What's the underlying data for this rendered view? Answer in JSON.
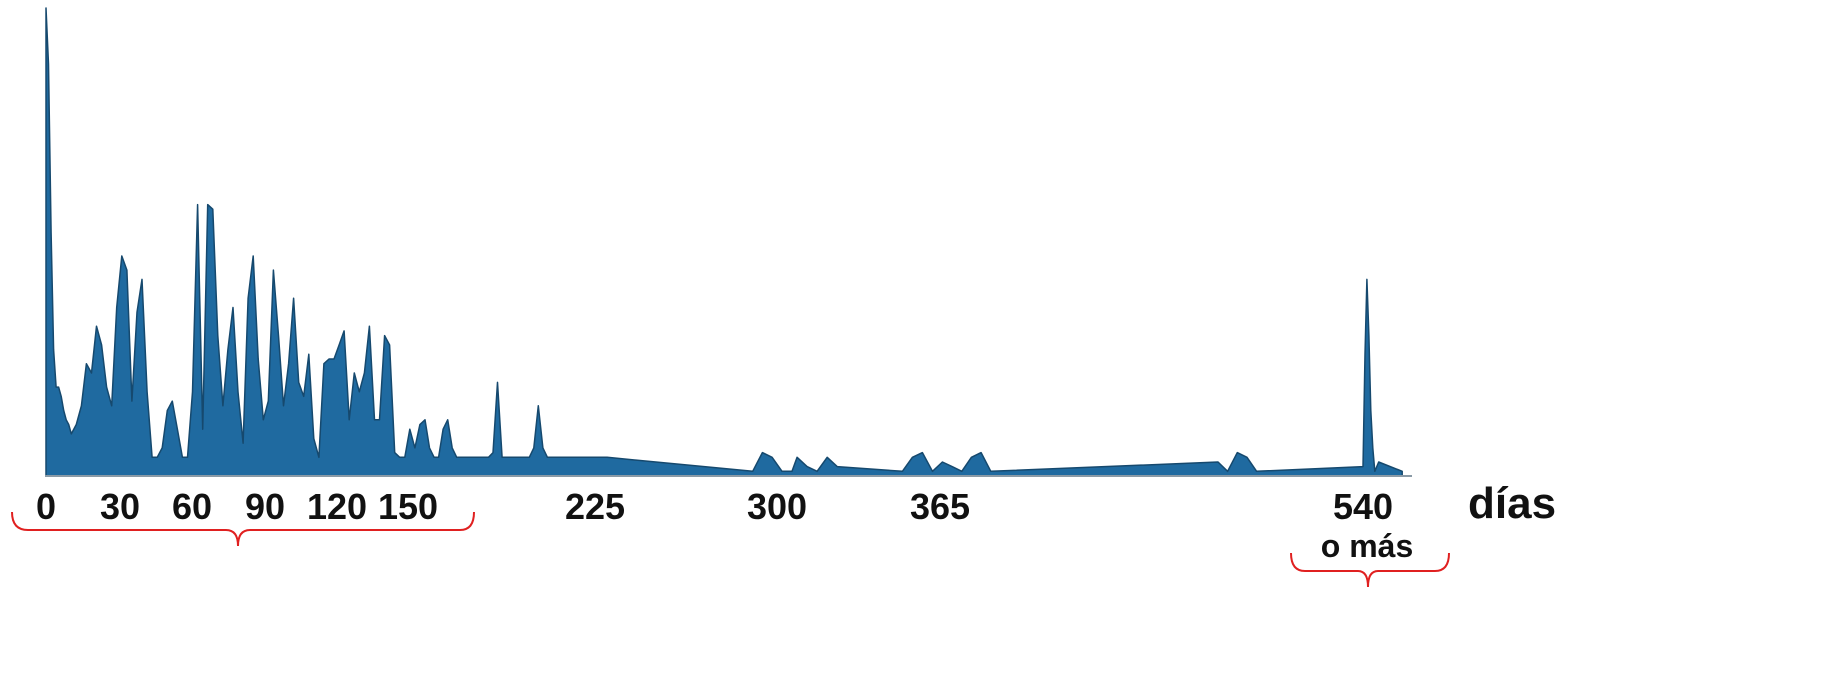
{
  "chart_data": {
    "type": "area",
    "title": "",
    "xlabel": "días",
    "ylabel": "",
    "xlim": [
      0,
      590
    ],
    "ylim": [
      0,
      100
    ],
    "grid": false,
    "x_ticks": [
      "0",
      "30",
      "60",
      "90",
      "120",
      "150",
      "225",
      "300",
      "365",
      "540"
    ],
    "x_tick_note": "o más",
    "colors": {
      "fill": "#1f6aa0",
      "stroke": "#16496e",
      "axis": "#8a9aa6",
      "bracket": "#e02020"
    },
    "series": [
      {
        "x": [
          0,
          1,
          2,
          3,
          4,
          5,
          6,
          7,
          8,
          9,
          10,
          12,
          14,
          16,
          18,
          20,
          22,
          24,
          26,
          28,
          30,
          32,
          34,
          36,
          38,
          40,
          42,
          44,
          46,
          48,
          50,
          52,
          54,
          56,
          58,
          60,
          62,
          64,
          66,
          68,
          70,
          72,
          74,
          76,
          78,
          80,
          82,
          84,
          86,
          88,
          90,
          92,
          94,
          96,
          98,
          100,
          102,
          104,
          106,
          108,
          110,
          112,
          114,
          116,
          118,
          120,
          122,
          124,
          126,
          128,
          130,
          132,
          134,
          136,
          138,
          140,
          142,
          144,
          146,
          148,
          150,
          152,
          154,
          156,
          158,
          160,
          162,
          164,
          166,
          168,
          170,
          172,
          174,
          176,
          178,
          180,
          182,
          184,
          186,
          188,
          190,
          192,
          194,
          196,
          198,
          200,
          202,
          204,
          206,
          208,
          210,
          212,
          214,
          216,
          218,
          220,
          222,
          224,
          226,
          228,
          230,
          290,
          294,
          298,
          302,
          306,
          308,
          312,
          316,
          320,
          324,
          350,
          354,
          358,
          362,
          366,
          370,
          374,
          378,
          382,
          386,
          480,
          484,
          488,
          492,
          496,
          540,
          542,
          544,
          546,
          548,
          550,
          552,
          556,
          580
        ],
        "values": [
          100,
          88,
          52,
          27,
          19,
          19,
          17,
          14,
          12,
          11,
          9,
          11,
          15,
          24,
          22,
          32,
          28,
          19,
          15,
          36,
          47,
          44,
          16,
          35,
          42,
          18,
          4,
          4,
          6,
          14,
          16,
          10,
          4,
          4,
          18,
          58,
          10,
          58,
          57,
          30,
          15,
          27,
          36,
          18,
          7,
          38,
          47,
          25,
          12,
          16,
          44,
          30,
          15,
          24,
          38,
          20,
          17,
          26,
          8,
          4,
          24,
          25,
          25,
          28,
          31,
          12,
          22,
          18,
          22,
          32,
          12,
          12,
          30,
          28,
          5,
          4,
          4,
          10,
          6,
          11,
          12,
          6,
          4,
          4,
          10,
          12,
          6,
          4,
          4,
          4,
          4,
          4,
          4,
          4,
          4,
          5,
          20,
          4,
          4,
          4,
          4,
          4,
          4,
          4,
          6,
          15,
          6,
          4,
          4,
          4,
          4,
          4,
          4,
          4,
          4,
          4,
          4,
          4,
          4,
          4,
          4,
          1,
          5,
          4,
          1,
          1,
          4,
          2,
          1,
          4,
          2,
          1,
          4,
          5,
          1,
          3,
          2,
          1,
          4,
          5,
          1,
          3,
          1,
          5,
          4,
          1,
          2,
          26,
          42,
          30,
          14,
          6,
          1,
          3,
          1
        ]
      }
    ]
  }
}
